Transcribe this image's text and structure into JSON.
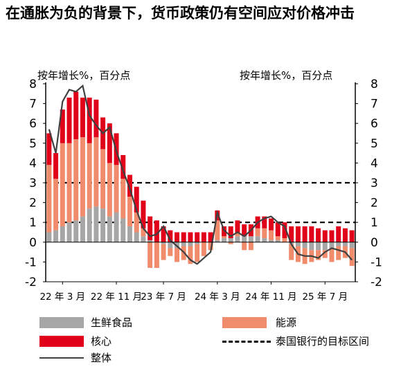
{
  "title": "在通胀为负的背景下，货币政策仍有空间应对价格冲击",
  "chart_data": {
    "type": "bar",
    "stacked": true,
    "y_label_left": "按年增长%，百分点",
    "y_label_right": "按年增长%，百分点",
    "ylim": [
      -2,
      8
    ],
    "yticks": [
      "8",
      "7",
      "6",
      "5",
      "4",
      "3",
      "2",
      "1",
      "0",
      "-1",
      "-2"
    ],
    "xticks": [
      {
        "index": 2,
        "label": "22 年 3 月"
      },
      {
        "index": 10,
        "label": "22 年 11 月"
      },
      {
        "index": 17,
        "label": "23 年 7 月"
      },
      {
        "index": 25,
        "label": "24 年 3 月"
      },
      {
        "index": 33,
        "label": "24 年 11 月"
      },
      {
        "index": 41,
        "label": "25 年 7 月"
      }
    ],
    "target_band": [
      1,
      3
    ],
    "series": [
      {
        "name": "生鲜食品",
        "color": "#a6a6a6",
        "values": [
          0.5,
          0.6,
          0.8,
          1.0,
          1.1,
          1.3,
          1.7,
          1.8,
          1.7,
          1.3,
          1.5,
          1.2,
          0.8,
          0.5,
          0.3,
          0.1,
          0.0,
          -0.1,
          -0.3,
          -0.3,
          -0.2,
          -0.2,
          -0.1,
          0.0,
          0.0,
          0.1,
          0.2,
          0.2,
          0.3,
          0.3,
          0.3,
          0.3,
          0.2,
          0.1,
          0.1,
          0.0,
          -0.1,
          -0.2,
          -0.3,
          -0.4,
          -0.4,
          -0.4,
          -0.3,
          -0.2,
          -0.2,
          -0.3
        ]
      },
      {
        "name": "能源",
        "color": "#f08c6c",
        "values": [
          3.4,
          2.6,
          4.2,
          4.0,
          4.1,
          4.0,
          3.3,
          3.5,
          3.0,
          2.7,
          2.4,
          2.0,
          1.5,
          1.0,
          0.4,
          -1.3,
          -1.3,
          -0.8,
          -0.4,
          -0.7,
          -0.7,
          -0.9,
          -0.9,
          -0.7,
          -0.4,
          1.0,
          0.1,
          -0.1,
          0.2,
          -0.4,
          -0.4,
          0.4,
          0.5,
          0.5,
          0.2,
          0.2,
          -0.8,
          -0.8,
          -0.8,
          -0.6,
          -0.5,
          -0.4,
          -0.7,
          -0.7,
          -0.6,
          -0.9
        ]
      },
      {
        "name": "核心",
        "color": "#e1001a",
        "values": [
          1.6,
          1.3,
          1.7,
          2.3,
          2.4,
          2.0,
          2.3,
          1.9,
          1.6,
          2.0,
          1.6,
          1.2,
          1.1,
          1.3,
          1.4,
          1.2,
          1.1,
          0.8,
          0.6,
          0.5,
          0.5,
          0.5,
          0.5,
          0.5,
          0.5,
          0.5,
          0.5,
          0.6,
          0.6,
          0.6,
          0.6,
          0.6,
          0.6,
          0.6,
          0.7,
          0.8,
          0.8,
          0.8,
          0.8,
          0.8,
          0.7,
          0.6,
          0.6,
          0.8,
          0.7,
          0.6
        ]
      },
      {
        "name": "整体",
        "color": "#404040",
        "type": "line",
        "values": [
          5.7,
          4.5,
          7.1,
          7.7,
          7.6,
          7.9,
          6.4,
          5.9,
          5.5,
          5.8,
          4.6,
          3.6,
          2.7,
          1.6,
          0.7,
          0.3,
          0.4,
          0.8,
          0.1,
          -0.2,
          -0.5,
          -0.9,
          -1.1,
          -0.8,
          -0.5,
          1.5,
          0.6,
          0.3,
          0.5,
          0.3,
          0.6,
          1.0,
          1.2,
          1.3,
          1.0,
          0.8,
          -0.1,
          -0.6,
          -0.7,
          -0.7,
          -0.8,
          -0.5,
          -0.3,
          -0.4,
          -0.5,
          -0.9
        ]
      },
      {
        "name": "泰国银行的目标区间",
        "color": "#000000",
        "type": "dashed"
      }
    ]
  },
  "legend": [
    {
      "label": "生鲜食品",
      "kind": "box",
      "color": "#a6a6a6"
    },
    {
      "label": "能源",
      "kind": "box",
      "color": "#f08c6c"
    },
    {
      "label": "核心",
      "kind": "box",
      "color": "#e1001a"
    },
    {
      "label": "泰国银行的目标区间",
      "kind": "dash",
      "color": "#000000"
    },
    {
      "label": "整体",
      "kind": "line",
      "color": "#404040"
    }
  ]
}
